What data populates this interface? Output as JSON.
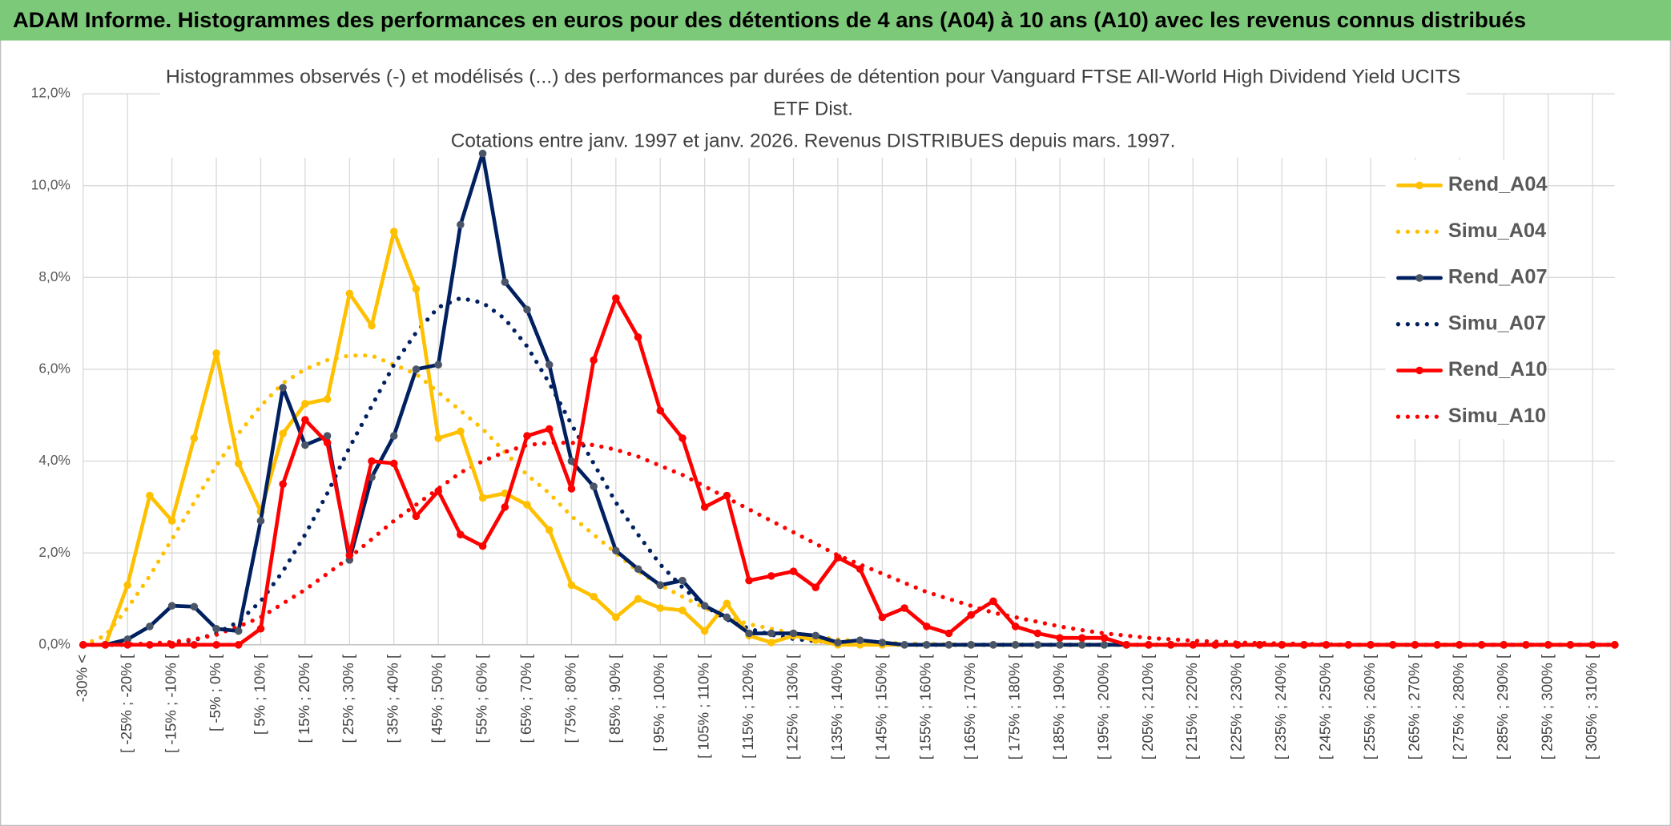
{
  "chart_data": {
    "type": "line",
    "banner": "ADAM Informe. Histogrammes des performances en euros pour des détentions de 4 ans (A04) à 10 ans (A10) avec les revenus connus distribués",
    "title": [
      "Histogrammes observés (-) et modélisés (...) des performances par durées de détention pour Vanguard FTSE All-World High Dividend Yield UCITS",
      "ETF Dist.",
      "Cotations entre janv. 1997 et janv. 2026. Revenus DISTRIBUES depuis mars. 1997."
    ],
    "categories": [
      "-30% <",
      null,
      "[ -25% ; -20% [",
      null,
      "[ -15% ; -10% [",
      null,
      "[ -5% ; 0% [",
      null,
      "[ 5% ; 10% [",
      null,
      "[ 15% ; 20% [",
      null,
      "[ 25% ; 30% [",
      null,
      "[ 35% ; 40% [",
      null,
      "[ 45% ; 50% [",
      null,
      "[ 55% ; 60% [",
      null,
      "[ 65% ; 70% [",
      null,
      "[ 75% ; 80% [",
      null,
      "[ 85% ; 90% [",
      null,
      "[ 95% ; 100% [",
      null,
      "[ 105% ; 110% [",
      null,
      "[ 115% ; 120% [",
      null,
      "[ 125% ; 130% [",
      null,
      "[ 135% ; 140% [",
      null,
      "[ 145% ; 150% [",
      null,
      "[ 155% ; 160% [",
      null,
      "[ 165% ; 170% [",
      null,
      "[ 175% ; 180% [",
      null,
      "[ 185% ; 190% [",
      null,
      "[ 195% ; 200% [",
      null,
      "[ 205% ; 210% [",
      null,
      "[ 215% ; 220% [",
      null,
      "[ 225% ; 230% [",
      null,
      "[ 235% ; 240% [",
      null,
      "[ 245% ; 250% [",
      null,
      "[ 255% ; 260% [",
      null,
      "[ 265% ; 270% [",
      null,
      "[ 275% ; 280% [",
      null,
      "[ 285% ; 290% [",
      null,
      "[ 295% ; 300% [",
      null,
      "[ 305% ; 310% [",
      null
    ],
    "ylim": [
      0,
      12
    ],
    "yticks": [
      {
        "value": 0,
        "label": "0,0%"
      },
      {
        "value": 2,
        "label": "2,0%"
      },
      {
        "value": 4,
        "label": "4,0%"
      },
      {
        "value": 6,
        "label": "6,0%"
      },
      {
        "value": 8,
        "label": "8,0%"
      },
      {
        "value": 10,
        "label": "10,0%"
      },
      {
        "value": 12,
        "label": "12,0%"
      }
    ],
    "grid": true,
    "legend": "right",
    "series": [
      {
        "name": "Rend_A04",
        "color": "#FFC000",
        "dotted": false,
        "marker_color": "#FFC000",
        "values": [
          0,
          0,
          1.3,
          3.25,
          2.7,
          4.5,
          6.35,
          3.95,
          2.9,
          4.6,
          5.25,
          5.35,
          7.65,
          6.95,
          9.0,
          7.75,
          4.5,
          4.65,
          3.2,
          3.3,
          3.05,
          2.5,
          1.3,
          1.05,
          0.6,
          1.0,
          0.8,
          0.75,
          0.3,
          0.9,
          0.2,
          0.05,
          0.2,
          0.1,
          0,
          0,
          0,
          0,
          0,
          0,
          0,
          0,
          0,
          0,
          0,
          0,
          0,
          0,
          0,
          0,
          0,
          0,
          0,
          0,
          0,
          0,
          0,
          0,
          0,
          0,
          0,
          0,
          0,
          0,
          0,
          0,
          0,
          0,
          0,
          0
        ]
      },
      {
        "name": "Simu_A04",
        "color": "#FFC000",
        "dotted": true,
        "values": [
          0,
          0.2,
          0.8,
          1.5,
          2.3,
          3.1,
          3.9,
          4.6,
          5.2,
          5.7,
          6.0,
          6.2,
          6.3,
          6.3,
          6.1,
          5.9,
          5.5,
          5.1,
          4.7,
          4.2,
          3.7,
          3.3,
          2.8,
          2.4,
          2.0,
          1.6,
          1.3,
          1.05,
          0.8,
          0.6,
          0.45,
          0.35,
          0.25,
          0.18,
          0.12,
          0.08,
          0.05,
          0.03,
          0.02,
          0.01,
          0,
          0,
          0,
          0,
          0,
          0,
          0,
          0,
          0,
          0,
          0,
          0,
          0,
          0,
          0,
          0,
          0,
          0,
          0,
          0,
          0,
          0,
          0,
          0,
          0,
          0,
          0,
          0,
          0,
          0
        ]
      },
      {
        "name": "Rend_A07",
        "color": "#002060",
        "dotted": false,
        "marker_color": "#4A5568",
        "values": [
          0,
          0,
          0.12,
          0.4,
          0.85,
          0.83,
          0.35,
          0.3,
          2.7,
          5.6,
          4.35,
          4.55,
          1.85,
          3.65,
          4.55,
          6.0,
          6.1,
          9.15,
          10.7,
          7.9,
          7.3,
          6.1,
          4.0,
          3.45,
          2.05,
          1.65,
          1.3,
          1.4,
          0.85,
          0.6,
          0.25,
          0.25,
          0.25,
          0.2,
          0.05,
          0.1,
          0.05,
          0,
          0,
          0,
          0,
          0,
          0,
          0,
          0,
          0,
          0,
          0,
          0,
          0,
          0,
          0,
          0,
          0,
          0,
          0,
          0,
          0,
          0,
          0,
          0,
          0,
          0,
          0,
          0,
          0,
          0,
          0,
          0,
          0
        ]
      },
      {
        "name": "Simu_A07",
        "color": "#002060",
        "dotted": true,
        "values": [
          0,
          0,
          0,
          0.02,
          0.05,
          0.1,
          0.25,
          0.5,
          0.95,
          1.6,
          2.4,
          3.3,
          4.3,
          5.2,
          6.1,
          6.8,
          7.35,
          7.55,
          7.45,
          7.1,
          6.5,
          5.7,
          4.8,
          3.95,
          3.1,
          2.4,
          1.75,
          1.25,
          0.85,
          0.55,
          0.35,
          0.22,
          0.13,
          0.08,
          0.05,
          0.03,
          0.01,
          0,
          0,
          0,
          0,
          0,
          0,
          0,
          0,
          0,
          0,
          0,
          0,
          0,
          0,
          0,
          0,
          0,
          0,
          0,
          0,
          0,
          0,
          0,
          0,
          0,
          0,
          0,
          0,
          0,
          0,
          0,
          0,
          0
        ]
      },
      {
        "name": "Rend_A10",
        "color": "#FF0000",
        "dotted": false,
        "marker_color": "#FF0000",
        "values": [
          0,
          0,
          0,
          0,
          0,
          0,
          0,
          0,
          0.35,
          3.5,
          4.9,
          4.4,
          1.95,
          4.0,
          3.95,
          2.8,
          3.35,
          2.4,
          2.15,
          3.0,
          4.55,
          4.7,
          3.4,
          6.2,
          7.55,
          6.7,
          5.1,
          4.5,
          3.0,
          3.25,
          1.4,
          1.5,
          1.6,
          1.25,
          1.9,
          1.65,
          0.6,
          0.8,
          0.4,
          0.25,
          0.65,
          0.95,
          0.4,
          0.25,
          0.15,
          0.15,
          0.15,
          0,
          0,
          0,
          0,
          0,
          0,
          0,
          0,
          0,
          0,
          0,
          0,
          0,
          0,
          0,
          0,
          0,
          0,
          0,
          0,
          0,
          0,
          0
        ]
      },
      {
        "name": "Simu_A10",
        "color": "#FF0000",
        "dotted": true,
        "values": [
          0,
          0,
          0.01,
          0.03,
          0.06,
          0.12,
          0.22,
          0.4,
          0.6,
          0.9,
          1.2,
          1.55,
          1.9,
          2.3,
          2.7,
          3.05,
          3.4,
          3.75,
          4.0,
          4.2,
          4.35,
          4.4,
          4.4,
          4.35,
          4.25,
          4.1,
          3.9,
          3.7,
          3.45,
          3.2,
          2.95,
          2.7,
          2.45,
          2.2,
          1.95,
          1.75,
          1.55,
          1.35,
          1.15,
          1.0,
          0.85,
          0.7,
          0.6,
          0.5,
          0.4,
          0.32,
          0.25,
          0.2,
          0.15,
          0.12,
          0.09,
          0.07,
          0.05,
          0.04,
          0.03,
          0.02,
          0.01,
          0,
          0,
          0,
          0,
          0,
          0,
          0,
          0,
          0,
          0,
          0,
          0,
          0
        ]
      }
    ]
  }
}
